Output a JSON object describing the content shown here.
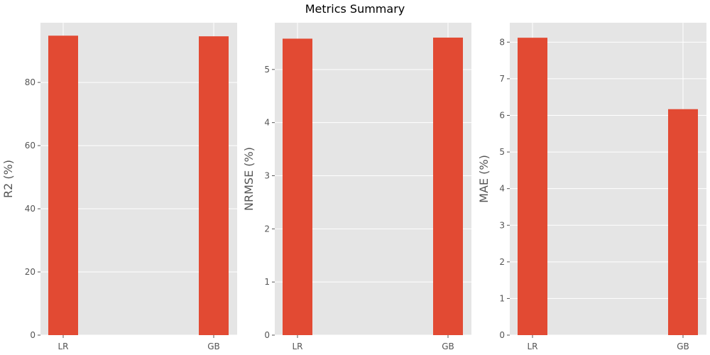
{
  "figure": {
    "title": "Metrics Summary",
    "background": "#ffffff",
    "plot_background": "#e5e5e5",
    "grid_color": "#ffffff",
    "text_color": "#555555"
  },
  "chart_data": [
    {
      "type": "bar",
      "categories": [
        "LR",
        "GB"
      ],
      "values": [
        94.8,
        94.6
      ],
      "ylabel": "R2 (%)",
      "xlabel": "",
      "ylim": [
        0,
        98.9
      ],
      "yticks": [
        0,
        20,
        40,
        60,
        80
      ],
      "grid": true,
      "bar_color": "#e24a33"
    },
    {
      "type": "bar",
      "categories": [
        "LR",
        "GB"
      ],
      "values": [
        5.58,
        5.6
      ],
      "ylabel": "NRMSE (%)",
      "xlabel": "",
      "ylim": [
        0,
        5.88
      ],
      "yticks": [
        0,
        1,
        2,
        3,
        4,
        5
      ],
      "grid": true,
      "bar_color": "#e24a33"
    },
    {
      "type": "bar",
      "categories": [
        "LR",
        "GB"
      ],
      "values": [
        8.12,
        6.17
      ],
      "ylabel": "MAE (%)",
      "xlabel": "",
      "ylim": [
        0,
        8.53
      ],
      "yticks": [
        0,
        1,
        2,
        3,
        4,
        5,
        6,
        7,
        8
      ],
      "grid": true,
      "bar_color": "#e24a33"
    }
  ]
}
